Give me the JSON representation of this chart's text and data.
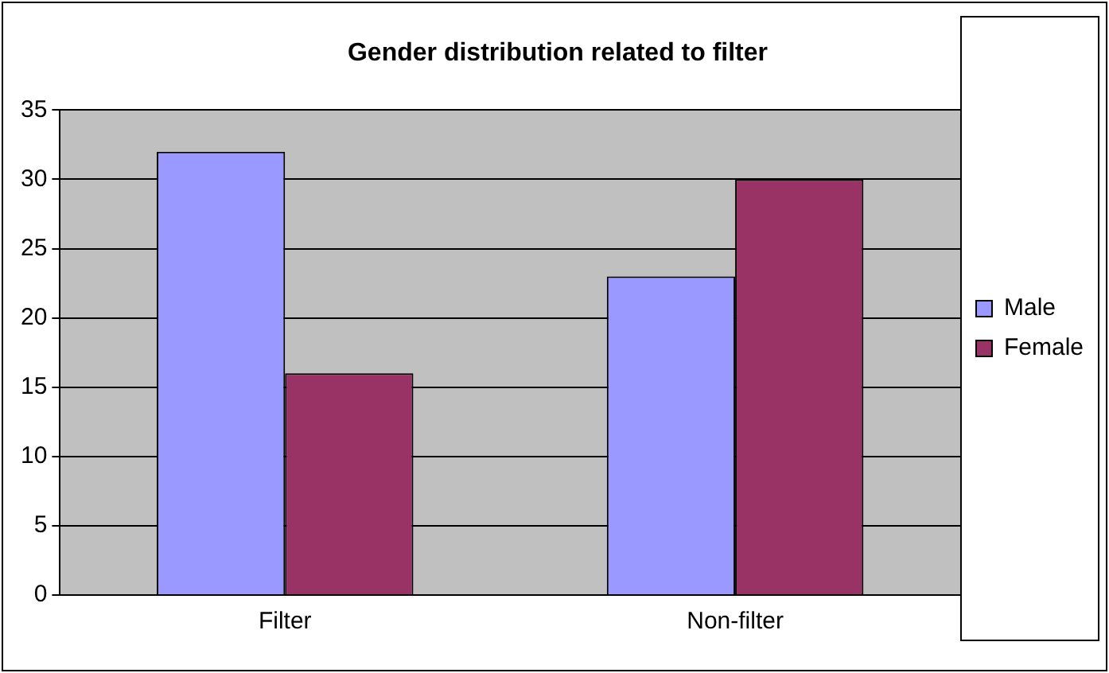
{
  "chart_data": {
    "type": "bar",
    "title": "Gender distribution related to filter",
    "categories": [
      "Filter",
      "Non-filter"
    ],
    "series": [
      {
        "name": "Male",
        "color": "#9999ff",
        "values": [
          32,
          23
        ]
      },
      {
        "name": "Female",
        "color": "#993366",
        "values": [
          16,
          30
        ]
      }
    ],
    "ylim": [
      0,
      35
    ],
    "yticks": [
      0,
      5,
      10,
      15,
      20,
      25,
      30,
      35
    ],
    "grid": "y",
    "legend": "right"
  }
}
